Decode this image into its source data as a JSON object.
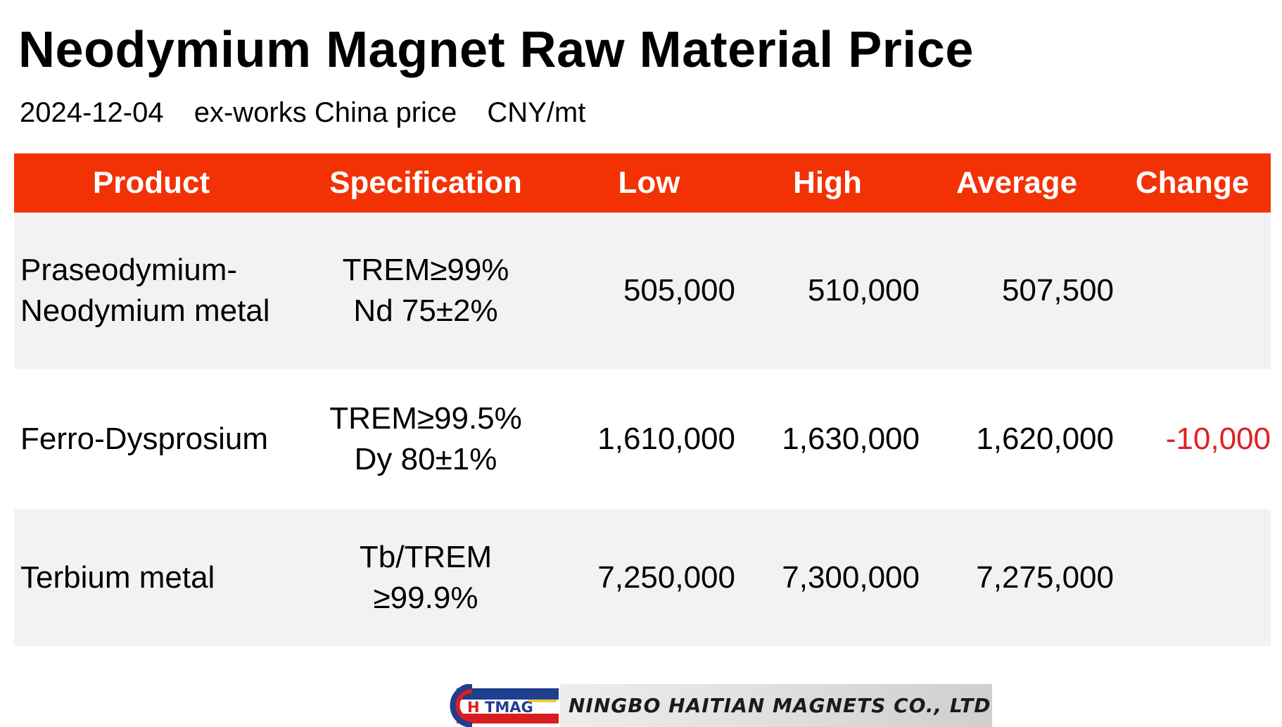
{
  "title": "Neodymium Magnet Raw Material Price",
  "subtitle": {
    "date": "2024-12-04",
    "basis": "ex-works China price",
    "unit": "CNY/mt"
  },
  "table": {
    "headers": [
      "Product",
      "Specification",
      "Low",
      "High",
      "Average",
      "Change"
    ],
    "rows": [
      {
        "product": [
          "Praseodymium-",
          "Neodymium metal"
        ],
        "spec": [
          "TREM≥99%",
          "Nd 75±2%"
        ],
        "low": "505,000",
        "high": "510,000",
        "average": "507,500",
        "change": ""
      },
      {
        "product": [
          "Ferro-Dysprosium"
        ],
        "spec": [
          "TREM≥99.5%",
          "Dy 80±1%"
        ],
        "low": "1,610,000",
        "high": "1,630,000",
        "average": "1,620,000",
        "change": "-10,000"
      },
      {
        "product": [
          "Terbium metal"
        ],
        "spec": [
          "Tb/TREM",
          "≥99.9%"
        ],
        "low": "7,250,000",
        "high": "7,300,000",
        "average": "7,275,000",
        "change": ""
      }
    ]
  },
  "logo": {
    "mark_text": "HTMAG",
    "company": "NINGBO HAITIAN MAGNETS CO., LTD"
  },
  "colors": {
    "header_bg": "#f23204",
    "header_text": "#ffffff",
    "row_shade": "#f2f2f2",
    "negative_change": "#e02020"
  }
}
